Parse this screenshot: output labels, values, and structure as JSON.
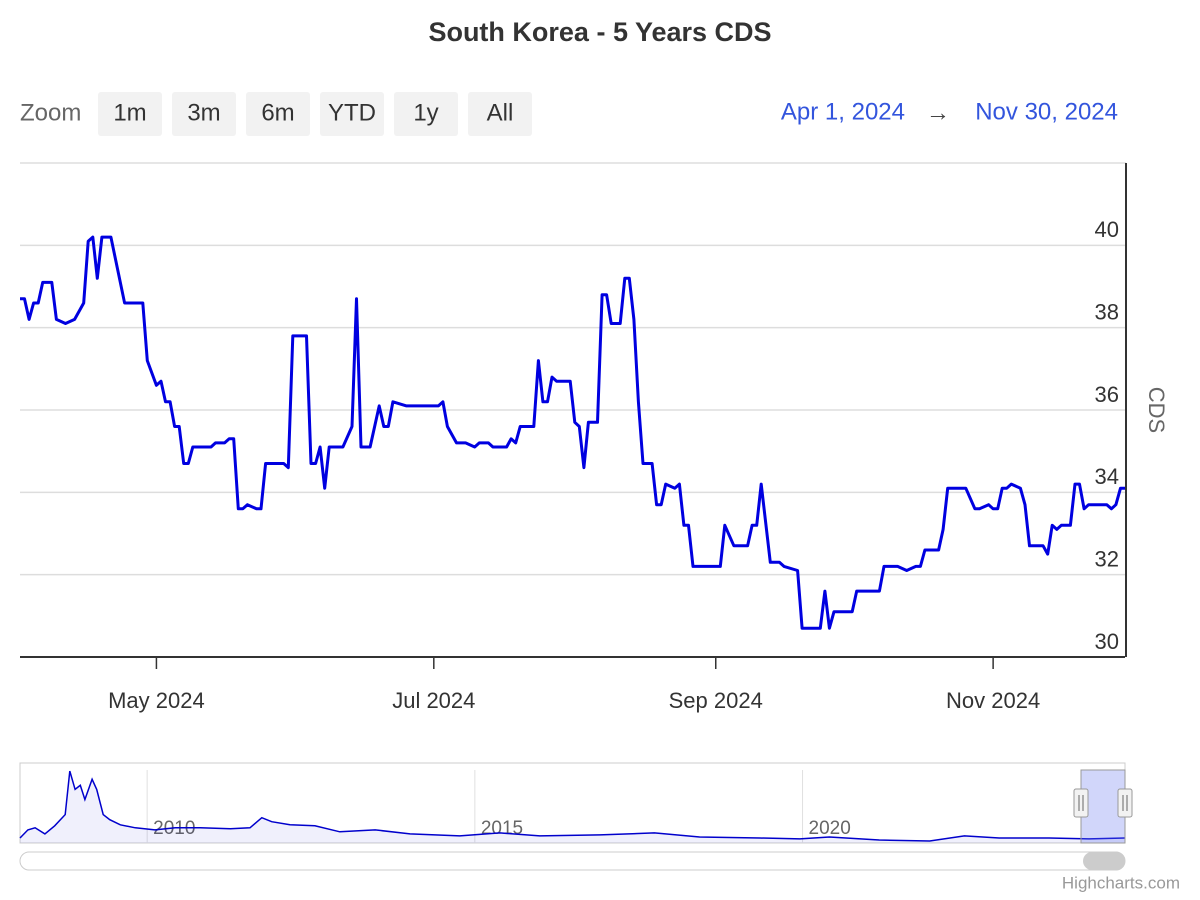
{
  "title": "South Korea - 5 Years CDS",
  "range_selector": {
    "label": "Zoom",
    "buttons": [
      "1m",
      "3m",
      "6m",
      "YTD",
      "1y",
      "All"
    ],
    "from": "Apr 1, 2024",
    "arrow": "→",
    "to": "Nov 30, 2024"
  },
  "credits": "Highcharts.com",
  "chart_data": [
    {
      "type": "line",
      "y_axis_label": "CDS",
      "xlim": [
        "2024-04-01",
        "2024-11-30"
      ],
      "xticks": [
        {
          "value": "2024-05-01",
          "label": "May 2024"
        },
        {
          "value": "2024-07-01",
          "label": "Jul 2024"
        },
        {
          "value": "2024-09-01",
          "label": "Sep 2024"
        },
        {
          "value": "2024-11-01",
          "label": "Nov 2024"
        }
      ],
      "ylim": [
        30,
        42
      ],
      "yticks": [
        30,
        32,
        34,
        36,
        38,
        40
      ],
      "grid": true,
      "x": [
        "2024-04-01",
        "2024-04-02",
        "2024-04-03",
        "2024-04-04",
        "2024-04-05",
        "2024-04-06",
        "2024-04-08",
        "2024-04-09",
        "2024-04-11",
        "2024-04-13",
        "2024-04-15",
        "2024-04-16",
        "2024-04-17",
        "2024-04-18",
        "2024-04-19",
        "2024-04-21",
        "2024-04-24",
        "2024-04-28",
        "2024-04-29",
        "2024-05-01",
        "2024-05-02",
        "2024-05-03",
        "2024-05-04",
        "2024-05-05",
        "2024-05-06",
        "2024-05-07",
        "2024-05-08",
        "2024-05-09",
        "2024-05-13",
        "2024-05-14",
        "2024-05-16",
        "2024-05-17",
        "2024-05-18",
        "2024-05-19",
        "2024-05-20",
        "2024-05-21",
        "2024-05-23",
        "2024-05-24",
        "2024-05-25",
        "2024-05-29",
        "2024-05-30",
        "2024-05-31",
        "2024-06-03",
        "2024-06-04",
        "2024-06-05",
        "2024-06-06",
        "2024-06-07",
        "2024-06-08",
        "2024-06-11",
        "2024-06-13",
        "2024-06-14",
        "2024-06-15",
        "2024-06-17",
        "2024-06-19",
        "2024-06-20",
        "2024-06-21",
        "2024-06-22",
        "2024-06-25",
        "2024-06-26",
        "2024-06-28",
        "2024-07-02",
        "2024-07-03",
        "2024-07-04",
        "2024-07-06",
        "2024-07-08",
        "2024-07-10",
        "2024-07-11",
        "2024-07-13",
        "2024-07-14",
        "2024-07-17",
        "2024-07-18",
        "2024-07-19",
        "2024-07-20",
        "2024-07-23",
        "2024-07-24",
        "2024-07-25",
        "2024-07-26",
        "2024-07-27",
        "2024-07-28",
        "2024-07-30",
        "2024-07-31",
        "2024-08-01",
        "2024-08-02",
        "2024-08-03",
        "2024-08-04",
        "2024-08-06",
        "2024-08-07",
        "2024-08-08",
        "2024-08-09",
        "2024-08-11",
        "2024-08-12",
        "2024-08-13",
        "2024-08-14",
        "2024-08-15",
        "2024-08-16",
        "2024-08-18",
        "2024-08-19",
        "2024-08-20",
        "2024-08-21",
        "2024-08-23",
        "2024-08-24",
        "2024-08-25",
        "2024-08-26",
        "2024-08-27",
        "2024-08-30",
        "2024-08-31",
        "2024-09-02",
        "2024-09-03",
        "2024-09-05",
        "2024-09-06",
        "2024-09-08",
        "2024-09-09",
        "2024-09-10",
        "2024-09-11",
        "2024-09-13",
        "2024-09-15",
        "2024-09-16",
        "2024-09-19",
        "2024-09-20",
        "2024-09-24",
        "2024-09-25",
        "2024-09-26",
        "2024-09-27",
        "2024-09-29",
        "2024-10-01",
        "2024-10-02",
        "2024-10-07",
        "2024-10-08",
        "2024-10-11",
        "2024-10-13",
        "2024-10-15",
        "2024-10-16",
        "2024-10-17",
        "2024-10-18",
        "2024-10-19",
        "2024-10-20",
        "2024-10-21",
        "2024-10-22",
        "2024-10-26",
        "2024-10-28",
        "2024-10-29",
        "2024-10-31",
        "2024-11-01",
        "2024-11-02",
        "2024-11-03",
        "2024-11-04",
        "2024-11-05",
        "2024-11-07",
        "2024-11-08",
        "2024-11-09",
        "2024-11-12",
        "2024-11-13",
        "2024-11-14",
        "2024-11-15",
        "2024-11-16",
        "2024-11-18",
        "2024-11-19",
        "2024-11-20",
        "2024-11-21",
        "2024-11-22",
        "2024-11-26",
        "2024-11-27",
        "2024-11-28",
        "2024-11-29",
        "2024-11-30"
      ],
      "series": [
        {
          "name": "CDS",
          "color": "#0000e0",
          "values": [
            38.7,
            38.7,
            38.2,
            38.6,
            38.6,
            39.1,
            39.1,
            38.2,
            38.1,
            38.2,
            38.6,
            40.1,
            40.2,
            39.2,
            40.2,
            40.2,
            38.6,
            38.6,
            37.2,
            36.6,
            36.7,
            36.2,
            36.2,
            35.6,
            35.6,
            34.7,
            34.7,
            35.1,
            35.1,
            35.2,
            35.2,
            35.3,
            35.3,
            33.6,
            33.6,
            33.7,
            33.6,
            33.6,
            34.7,
            34.7,
            34.6,
            37.8,
            37.8,
            34.7,
            34.7,
            35.1,
            34.1,
            35.1,
            35.1,
            35.6,
            38.7,
            35.1,
            35.1,
            36.1,
            35.6,
            35.6,
            36.2,
            36.1,
            36.1,
            36.1,
            36.1,
            36.2,
            35.6,
            35.2,
            35.2,
            35.1,
            35.2,
            35.2,
            35.1,
            35.1,
            35.3,
            35.2,
            35.6,
            35.6,
            37.2,
            36.2,
            36.2,
            36.8,
            36.7,
            36.7,
            36.7,
            35.7,
            35.6,
            34.6,
            35.7,
            35.7,
            38.8,
            38.8,
            38.1,
            38.1,
            39.2,
            39.2,
            38.2,
            36.2,
            34.7,
            34.7,
            33.7,
            33.7,
            34.2,
            34.1,
            34.2,
            33.2,
            33.2,
            32.2,
            32.2,
            32.2,
            32.2,
            33.2,
            32.7,
            32.7,
            32.7,
            33.2,
            33.2,
            34.2,
            32.3,
            32.3,
            32.2,
            32.1,
            30.7,
            30.7,
            31.6,
            30.7,
            31.1,
            31.1,
            31.1,
            31.6,
            31.6,
            32.2,
            32.2,
            32.1,
            32.2,
            32.2,
            32.6,
            32.6,
            32.6,
            32.6,
            33.1,
            34.1,
            34.1,
            33.6,
            33.6,
            33.7,
            33.6,
            33.6,
            34.1,
            34.1,
            34.2,
            34.1,
            33.7,
            32.7,
            32.7,
            32.5,
            33.2,
            33.1,
            33.2,
            33.2,
            34.2,
            34.2,
            33.6,
            33.7,
            33.7,
            33.6,
            33.7,
            34.1,
            34.1
          ]
        }
      ]
    },
    {
      "type": "area",
      "xlim": [
        2008.06,
        2024.92
      ],
      "xticks": [
        2010,
        2015,
        2020
      ],
      "ylim": [
        0,
        700
      ],
      "x": [
        2008.06,
        2008.18,
        2008.29,
        2008.44,
        2008.59,
        2008.75,
        2008.82,
        2008.9,
        2008.98,
        2009.05,
        2009.16,
        2009.23,
        2009.33,
        2009.43,
        2009.59,
        2009.82,
        2010.12,
        2010.43,
        2010.81,
        2011.27,
        2011.57,
        2011.75,
        2011.9,
        2012.18,
        2012.56,
        2012.94,
        2013.48,
        2014.01,
        2014.77,
        2015.38,
        2015.99,
        2016.91,
        2017.74,
        2018.43,
        2019.35,
        2019.96,
        2020.41,
        2021.17,
        2021.94,
        2022.47,
        2023.0,
        2023.76,
        2024.37,
        2024.92
      ],
      "series": [
        {
          "name": "CDS",
          "color": "#0000cc",
          "values": [
            48,
            126,
            146,
            87,
            165,
            272,
            689,
            514,
            553,
            417,
            611,
            514,
            272,
            223,
            175,
            146,
            126,
            146,
            146,
            136,
            146,
            243,
            204,
            175,
            165,
            107,
            126,
            87,
            68,
            97,
            68,
            78,
            97,
            58,
            48,
            39,
            58,
            29,
            19,
            68,
            48,
            48,
            39,
            48
          ]
        }
      ]
    }
  ]
}
